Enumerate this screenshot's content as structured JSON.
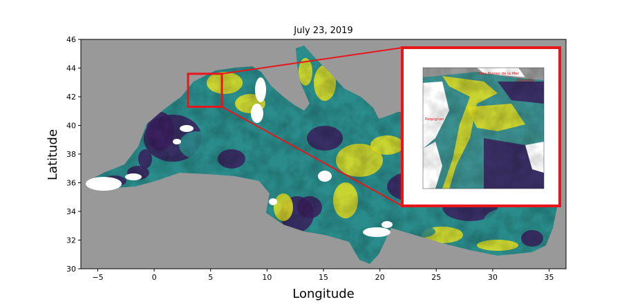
{
  "title": "July 23, 2019",
  "xlabel": "Longitude",
  "ylabel": "Latitude",
  "xlim": [
    -6.5,
    36.5
  ],
  "ylim": [
    30,
    46
  ],
  "x_ticks": [
    -5,
    0,
    5,
    10,
    15,
    20,
    25,
    30,
    35
  ],
  "y_ticks": [
    30,
    32,
    34,
    36,
    38,
    40,
    42,
    44,
    46
  ],
  "colors": {
    "no_data": "#999999",
    "land": "#ffffff",
    "highlight": "#e8151b",
    "low": "#3b1e5e",
    "mid": "#2a8d8c",
    "high": "#e4e021"
  },
  "inset": {
    "region_lon": [
      3.0,
      6.0
    ],
    "region_lat": [
      41.3,
      43.6
    ],
    "place_labels": {
      "saintes_maries": "Stes Maries de la Mer",
      "marseille": "Marseille",
      "perpignan": "Perpignan"
    }
  }
}
